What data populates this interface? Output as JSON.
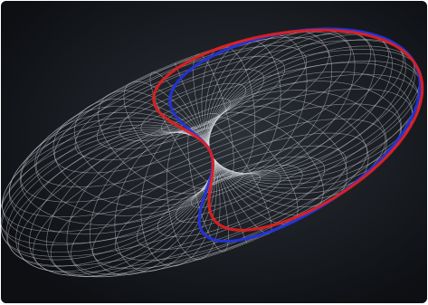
{
  "scene": {
    "subject": "wireframe-torus-with-curves",
    "colors": {
      "background": "#161a1f",
      "mesh": "#d9dde2",
      "curve_red": "#e02020",
      "curve_blue": "#2233dd"
    }
  }
}
